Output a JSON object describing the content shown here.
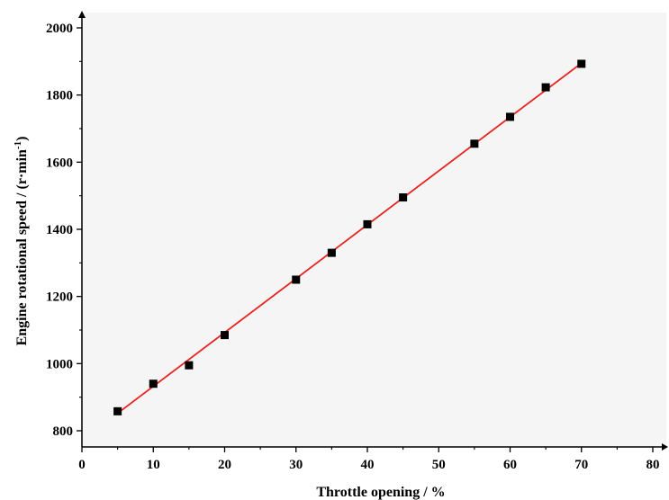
{
  "chart_data": {
    "type": "scatter",
    "xlabel": "Throttle opening / %",
    "ylabel_main": "Engine rotational speed / (r·min",
    "ylabel_sup": "-1",
    "ylabel_end": ")",
    "xlim": [
      0,
      80
    ],
    "ylim": [
      750,
      2000
    ],
    "xticks": [
      0,
      10,
      20,
      30,
      40,
      50,
      60,
      70,
      80
    ],
    "yticks": [
      800,
      1000,
      1200,
      1400,
      1600,
      1800,
      2000
    ],
    "grid": false,
    "series": [
      {
        "marker": "square",
        "color": "#000000",
        "x": [
          5,
          10,
          15,
          20,
          30,
          35,
          40,
          45,
          55,
          60,
          65,
          70
        ],
        "y": [
          858,
          940,
          995,
          1085,
          1250,
          1330,
          1415,
          1495,
          1655,
          1735,
          1823,
          1893
        ]
      }
    ],
    "fit_line": {
      "color": "#e8231f",
      "x": [
        5,
        70
      ],
      "y": [
        852,
        1895
      ]
    },
    "plot_background": "#f5f5f5"
  }
}
